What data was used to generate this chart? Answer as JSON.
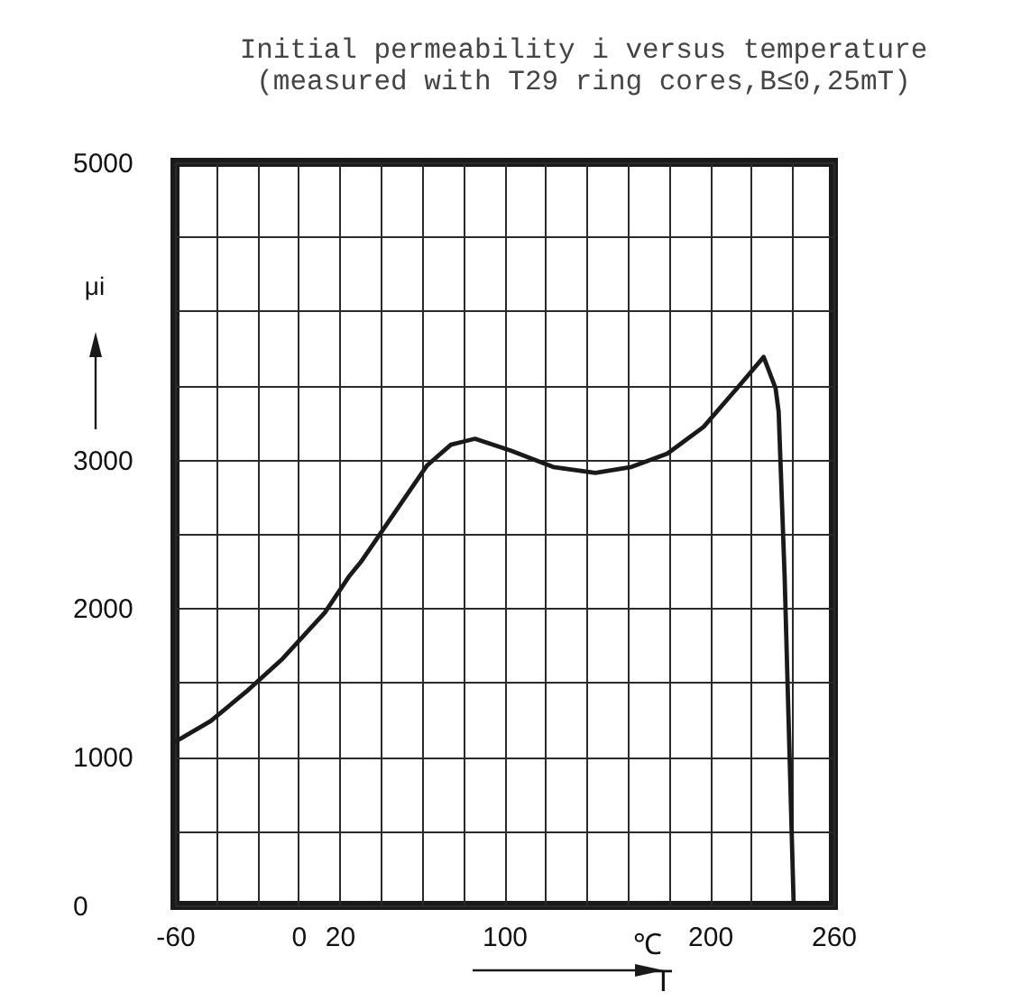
{
  "chart_data": {
    "type": "line",
    "title": "Initial permeability i versus temperature",
    "subtitle": "(measured with T29 ring cores,B≤0,25mT)",
    "xlabel": "T",
    "ylabel": "μi",
    "annotations": [
      "℃"
    ],
    "x": [
      -60,
      -42.7,
      -25.2,
      -7.7,
      12.8,
      24.4,
      30.3,
      62.5,
      74.1,
      85.8,
      103.3,
      123.8,
      144.3,
      161.8,
      179.3,
      196.9,
      214.4,
      226.1,
      231.9,
      233.4,
      236.3,
      240.7
    ],
    "series": [
      {
        "color": "#1a1a1a",
        "values": [
          1100,
          1240,
          1440,
          1660,
          1970,
          2210,
          2310,
          2960,
          3100,
          3140,
          3060,
          2950,
          2910,
          2950,
          3040,
          3220,
          3500,
          3690,
          3480,
          3320,
          2210,
          0
        ]
      }
    ],
    "xlim": [
      -60,
      260
    ],
    "ylim": [
      0,
      5000
    ],
    "xticks": [
      -60,
      {
        "value": -40,
        "label": null
      },
      {
        "value": -20,
        "label": null
      },
      0,
      20,
      {
        "value": 40,
        "label": null
      },
      {
        "value": 60,
        "label": null
      },
      {
        "value": 80,
        "label": null
      },
      100,
      {
        "value": 120,
        "label": null
      },
      {
        "value": 140,
        "label": null
      },
      {
        "value": 160,
        "label": null
      },
      {
        "value": 180,
        "label": null
      },
      200,
      {
        "value": 220,
        "label": null
      },
      {
        "value": 240,
        "label": null
      },
      260
    ],
    "yticks": [
      0,
      {
        "value": 500,
        "label": null
      },
      1000,
      {
        "value": 1500,
        "label": null
      },
      2000,
      {
        "value": 2500,
        "label": null
      },
      3000,
      {
        "value": 3500,
        "label": null
      },
      {
        "value": 4000,
        "label": null
      },
      {
        "value": 4500,
        "label": null
      },
      5000
    ],
    "grid": true
  }
}
